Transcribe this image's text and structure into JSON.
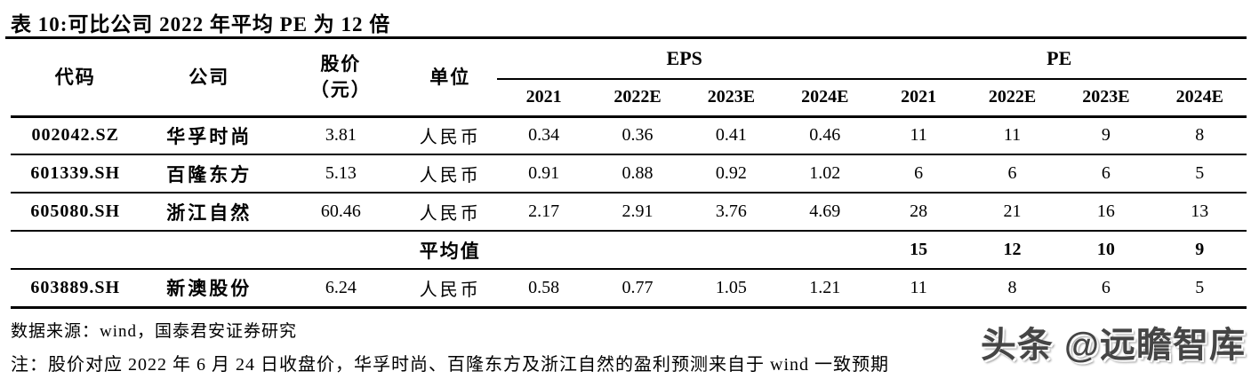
{
  "title": "表 10:可比公司 2022 年平均 PE 为 12 倍",
  "colors": {
    "text": "#000000",
    "watermark_gray": "#454545"
  },
  "table": {
    "headers": {
      "code": "代码",
      "company": "公司",
      "price_line1": "股价",
      "price_line2": "（元）",
      "unit": "单位",
      "eps_group": "EPS",
      "pe_group": "PE",
      "years": [
        "2021",
        "2022E",
        "2023E",
        "2024E",
        "2021",
        "2022E",
        "2023E",
        "2024E"
      ]
    },
    "rows": [
      {
        "code": "002042.SZ",
        "company": "华孚时尚",
        "price": "3.81",
        "unit": "人民币",
        "eps": [
          "0.34",
          "0.36",
          "0.41",
          "0.46"
        ],
        "pe": [
          "11",
          "11",
          "9",
          "8"
        ]
      },
      {
        "code": "601339.SH",
        "company": "百隆东方",
        "price": "5.13",
        "unit": "人民币",
        "eps": [
          "0.91",
          "0.88",
          "0.92",
          "1.02"
        ],
        "pe": [
          "6",
          "6",
          "6",
          "5"
        ]
      },
      {
        "code": "605080.SH",
        "company": "浙江自然",
        "price": "60.46",
        "unit": "人民币",
        "eps": [
          "2.17",
          "2.91",
          "3.76",
          "4.69"
        ],
        "pe": [
          "28",
          "21",
          "16",
          "13"
        ]
      },
      {
        "code": "603889.SH",
        "company": "新澳股份",
        "price": "6.24",
        "unit": "人民币",
        "eps": [
          "0.58",
          "0.77",
          "1.05",
          "1.21"
        ],
        "pe": [
          "11",
          "8",
          "6",
          "5"
        ]
      }
    ],
    "average_row": {
      "label": "平均值",
      "pe": [
        "15",
        "12",
        "10",
        "9"
      ]
    }
  },
  "source": "数据来源：wind，国泰君安证券研究",
  "note": "注：股价对应 2022 年 6 月 24 日收盘价，华孚时尚、百隆东方及浙江自然的盈利预测来自于 wind 一致预期",
  "watermark": "头条 @远瞻智库"
}
